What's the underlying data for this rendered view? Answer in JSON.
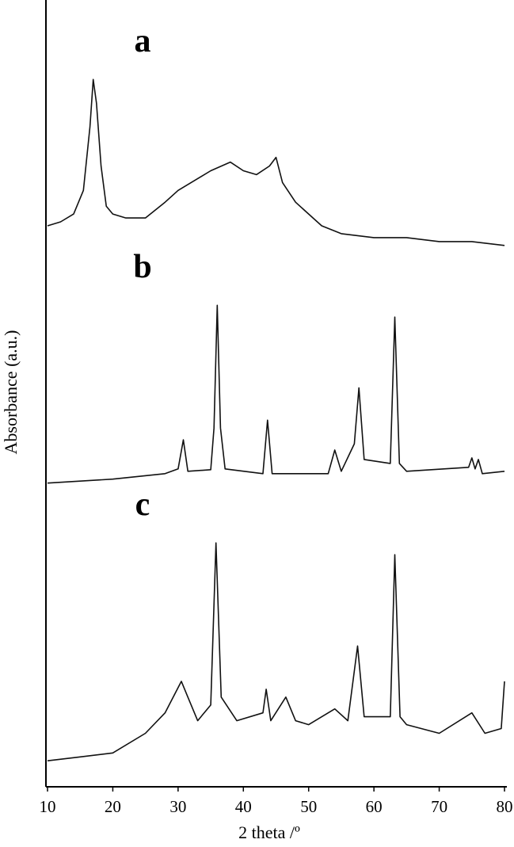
{
  "chart_data": {
    "type": "line",
    "xlabel": "2 theta /º",
    "ylabel": "Absorbance (a.u.)",
    "xlim": [
      10,
      80
    ],
    "xticks": [
      10,
      20,
      30,
      40,
      50,
      60,
      70,
      80
    ],
    "ylim": [
      0,
      100
    ],
    "color": "#000000",
    "series": [
      {
        "name": "a",
        "color": "#111111",
        "x": [
          10,
          12,
          14,
          15.5,
          16.5,
          17,
          17.5,
          18.2,
          19,
          20,
          22,
          25,
          28,
          30,
          33,
          35,
          38,
          40,
          42,
          44,
          45,
          46,
          48,
          50,
          52,
          55,
          60,
          65,
          70,
          75,
          80
        ],
        "values": [
          71.3,
          71.8,
          72.8,
          75.8,
          83.9,
          89.9,
          86.9,
          78.9,
          73.8,
          72.8,
          72.3,
          72.3,
          74.3,
          75.8,
          77.3,
          78.3,
          79.4,
          78.3,
          77.8,
          78.9,
          80.0,
          76.8,
          74.3,
          72.8,
          71.3,
          70.3,
          69.8,
          69.8,
          69.3,
          69.3,
          68.8
        ]
      },
      {
        "name": "b",
        "color": "#111111",
        "x": [
          10,
          20,
          28,
          30,
          30.8,
          31.5,
          35,
          35.5,
          36,
          36.5,
          37.2,
          43,
          43.7,
          44.4,
          53,
          54,
          55,
          57,
          57.7,
          58.5,
          62.5,
          63.2,
          63.9,
          65,
          74.5,
          75,
          75.5,
          76,
          76.6,
          80
        ],
        "values": [
          38.6,
          39.1,
          39.8,
          40.4,
          44.1,
          40.1,
          40.3,
          45.6,
          61.2,
          45.6,
          40.4,
          39.8,
          46.6,
          39.8,
          39.8,
          42.8,
          40.1,
          43.6,
          50.7,
          41.6,
          41.1,
          59.7,
          41.1,
          40.1,
          40.6,
          41.8,
          40.4,
          41.6,
          39.8,
          40.1
        ]
      },
      {
        "name": "c",
        "color": "#111111",
        "x": [
          10,
          15,
          20,
          25,
          28,
          30.5,
          31.5,
          33,
          35,
          35.8,
          36.6,
          39,
          43,
          43.5,
          44.2,
          46.5,
          48,
          50,
          54,
          56,
          57.5,
          58.5,
          62.5,
          63.2,
          64,
          65,
          70,
          75,
          77,
          79.5,
          80
        ],
        "values": [
          3.3,
          3.8,
          4.3,
          6.8,
          9.4,
          13.4,
          11.4,
          8.4,
          10.4,
          31.0,
          11.4,
          8.4,
          9.4,
          12.4,
          8.4,
          11.4,
          8.4,
          7.9,
          9.9,
          8.4,
          17.9,
          8.9,
          8.9,
          29.5,
          8.9,
          7.9,
          6.8,
          9.4,
          6.8,
          7.4,
          13.4
        ]
      }
    ]
  }
}
